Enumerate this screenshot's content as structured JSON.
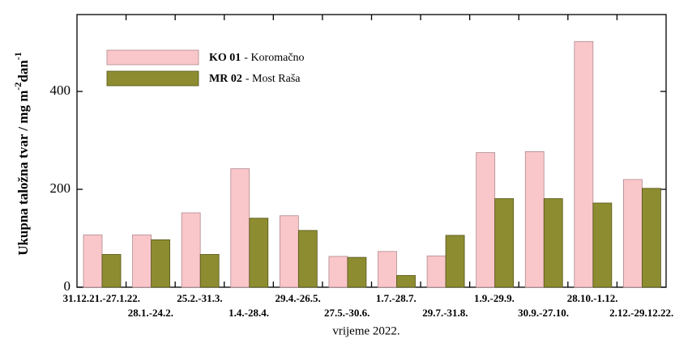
{
  "chart_data": {
    "type": "bar",
    "ylabel": [
      "Ukupna taložna tvar / mg m",
      "-2",
      "dan",
      "-1"
    ],
    "xlabel": "vrijeme 2022.",
    "categories": [
      "31.12.21.-27.1.22.",
      "28.1.-24.2.",
      "25.2.-31.3.",
      "1.4.-28.4.",
      "29.4.-26.5.",
      "27.5.-30.6.",
      "1.7.-28.7.",
      "29.7.-31.8.",
      "1.9.-29.9.",
      "30.9.-27.10.",
      "28.10.-1.12.",
      "2.12.-29.12.22."
    ],
    "series": [
      {
        "name": "KO 01",
        "label": "- Koromačno",
        "color": "#f9c6ca",
        "values": [
          107,
          107,
          152,
          242,
          146,
          63,
          73,
          64,
          275,
          277,
          502,
          220
        ]
      },
      {
        "name": "MR 02",
        "label": "- Most Raša",
        "color": "#8d8c30",
        "values": [
          67,
          97,
          67,
          141,
          116,
          61,
          24,
          106,
          181,
          181,
          172,
          202
        ]
      }
    ],
    "ylim": [
      0,
      557
    ],
    "yticks": [
      0,
      200,
      400
    ]
  }
}
